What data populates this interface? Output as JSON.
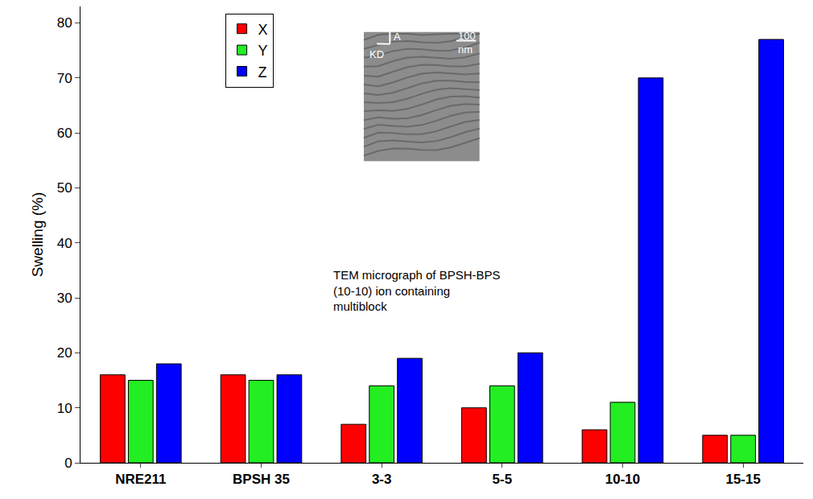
{
  "chart_data": {
    "type": "bar",
    "categories": [
      "NRE211",
      "BPSH 35",
      "3-3",
      "5-5",
      "10-10",
      "15-15"
    ],
    "series": [
      {
        "name": "X",
        "color": "#ff0000",
        "values": [
          16,
          16,
          7,
          10,
          6,
          5
        ]
      },
      {
        "name": "Y",
        "color": "#22ee22",
        "values": [
          15,
          15,
          14,
          14,
          11,
          5
        ]
      },
      {
        "name": "Z",
        "color": "#0000ff",
        "values": [
          18,
          16,
          19,
          20,
          70,
          77
        ]
      }
    ],
    "y_label": "Swelling (%)",
    "ylim": [
      0,
      83
    ],
    "yticks": [
      0,
      10,
      20,
      30,
      40,
      50,
      60,
      70,
      80
    ],
    "grid": false,
    "legend": "upper left",
    "annotations": [
      "KD",
      "A",
      "100 nm",
      "TEM micrograph of BPSH-BPS (10-10) ion containing multiblock"
    ]
  }
}
